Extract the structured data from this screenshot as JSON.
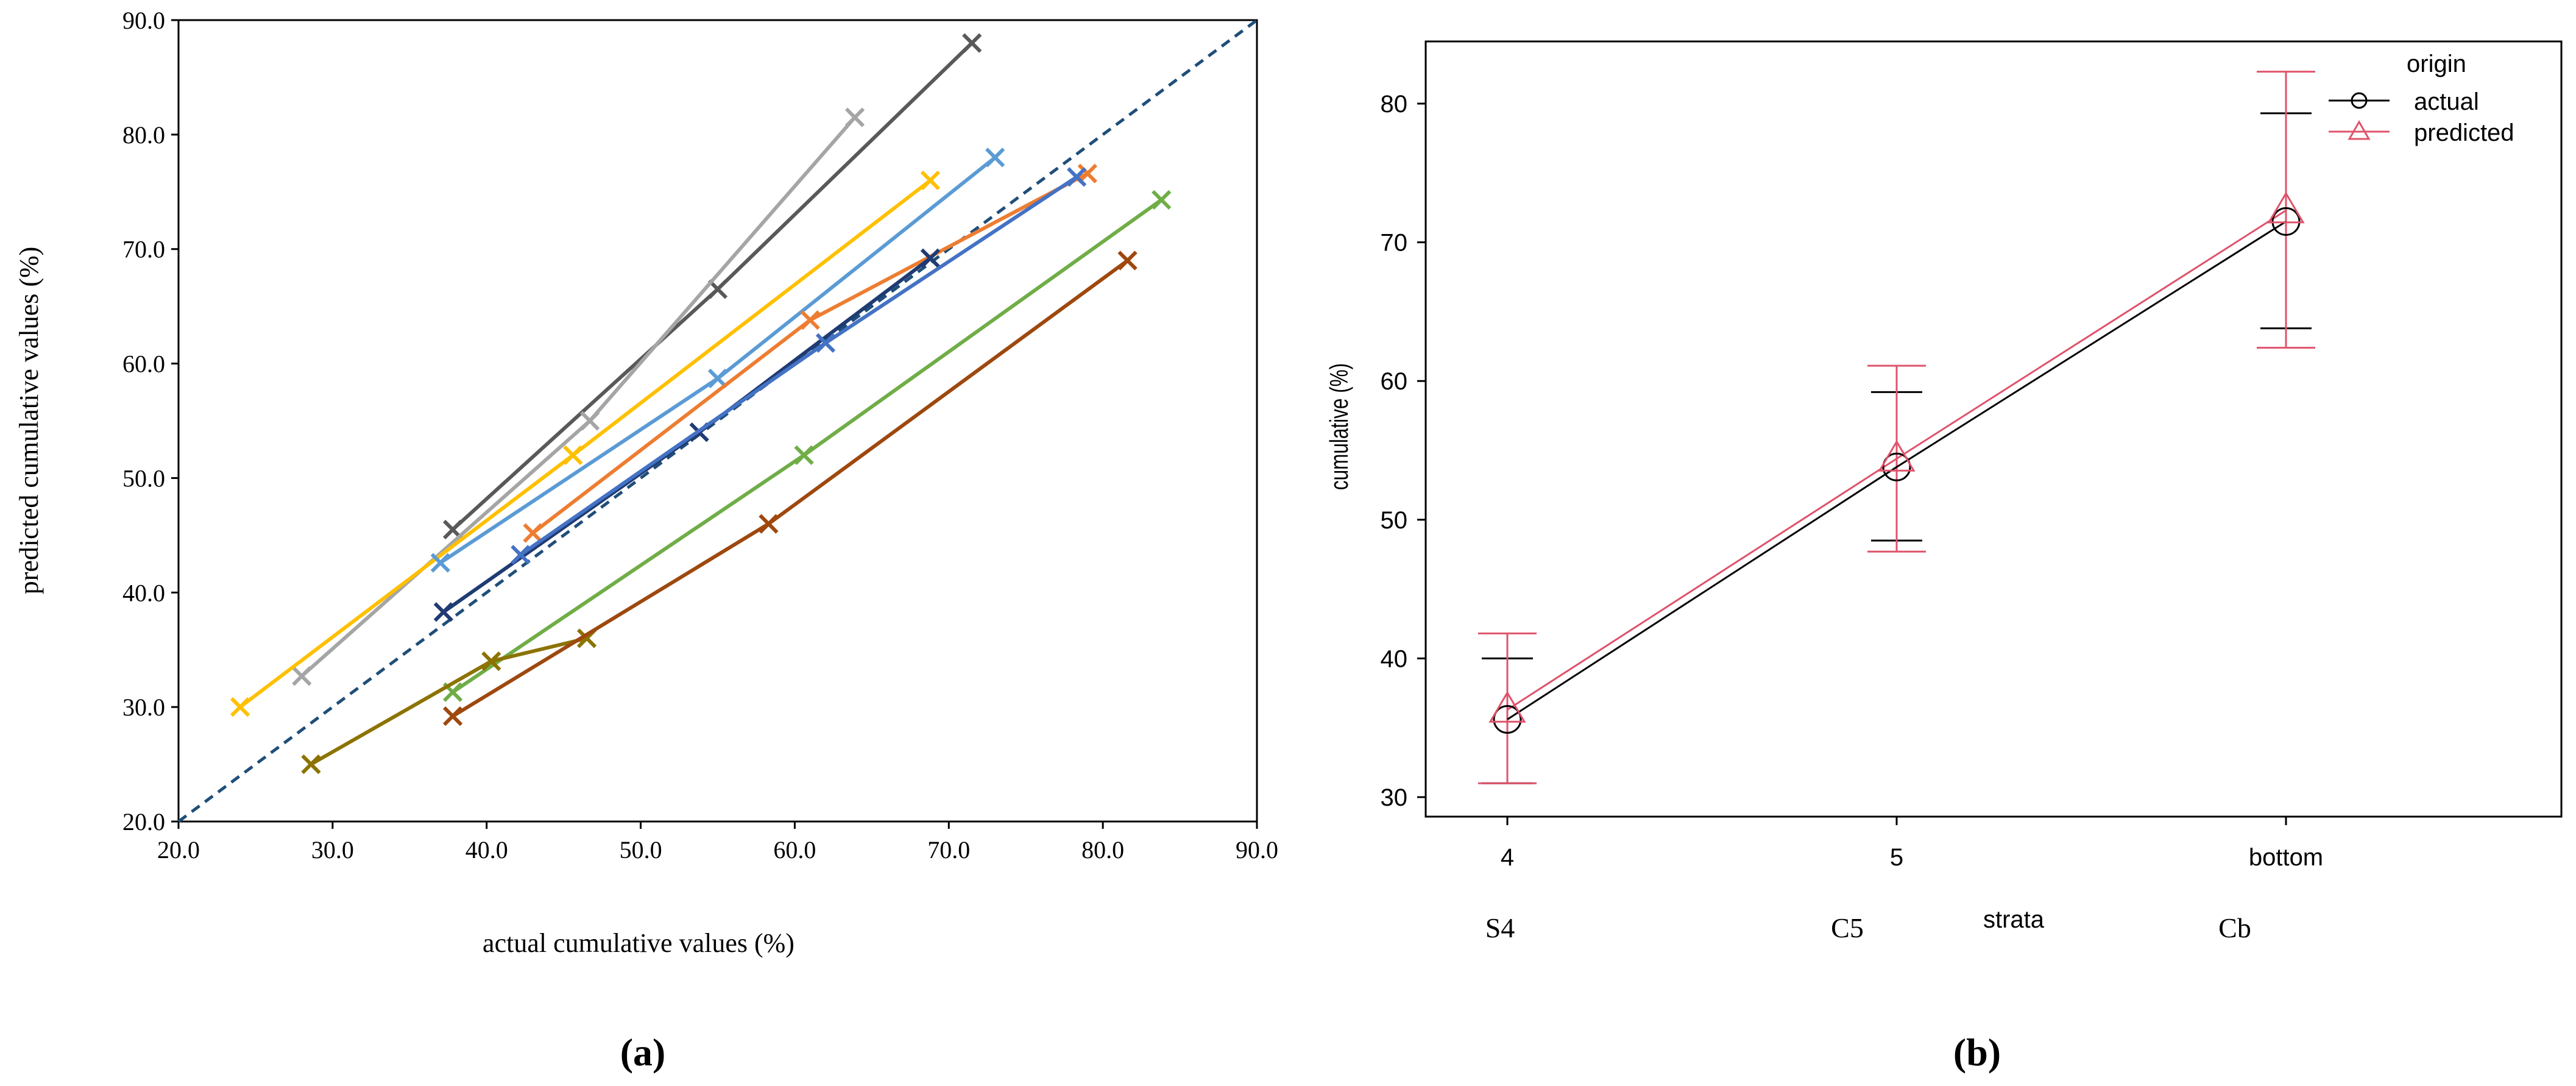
{
  "chart_data": [
    {
      "panel": "(a)",
      "type": "line",
      "xlabel": "actual cumulative values (%)",
      "ylabel": "predicted cumulative values (%)",
      "xlim": [
        20,
        90
      ],
      "ylim": [
        20,
        90
      ],
      "xticks": [
        "20.0",
        "30.0",
        "40.0",
        "50.0",
        "60.0",
        "70.0",
        "80.0",
        "90.0"
      ],
      "yticks": [
        "20.0",
        "30.0",
        "40.0",
        "50.0",
        "60.0",
        "70.0",
        "80.0",
        "90.0"
      ],
      "reference_line": {
        "name": "1:1 line",
        "color": "#1f4e79",
        "points": [
          [
            20,
            20
          ],
          [
            90,
            90
          ]
        ]
      },
      "series": [
        {
          "name": "series-dark-gray",
          "color": "#595959",
          "points": [
            [
              37.8,
              45.5
            ],
            [
              55.0,
              66.5
            ],
            [
              71.5,
              88.0
            ]
          ]
        },
        {
          "name": "series-light-gray",
          "color": "#a5a5a5",
          "points": [
            [
              28.0,
              32.7
            ],
            [
              46.7,
              55.0
            ],
            [
              63.9,
              81.5
            ]
          ]
        },
        {
          "name": "series-yellow",
          "color": "#ffc000",
          "points": [
            [
              24.0,
              30.0
            ],
            [
              45.6,
              52.0
            ],
            [
              68.8,
              76.0
            ]
          ]
        },
        {
          "name": "series-light-blue",
          "color": "#5b9bd5",
          "points": [
            [
              37.0,
              42.6
            ],
            [
              55.0,
              58.7
            ],
            [
              73.0,
              78.0
            ]
          ]
        },
        {
          "name": "series-orange",
          "color": "#ed7d31",
          "points": [
            [
              43.0,
              45.2
            ],
            [
              61.0,
              63.8
            ],
            [
              79.0,
              76.6
            ]
          ]
        },
        {
          "name": "series-navy",
          "color": "#1f3b73",
          "points": [
            [
              37.2,
              38.3
            ],
            [
              53.8,
              54.0
            ],
            [
              68.8,
              69.2
            ]
          ]
        },
        {
          "name": "series-blue",
          "color": "#4472c4",
          "points": [
            [
              42.2,
              43.3
            ],
            [
              62.0,
              61.8
            ],
            [
              78.3,
              76.3
            ]
          ]
        },
        {
          "name": "series-green",
          "color": "#70ad47",
          "points": [
            [
              37.8,
              31.3
            ],
            [
              60.6,
              52.0
            ],
            [
              83.8,
              74.3
            ]
          ]
        },
        {
          "name": "series-olive",
          "color": "#8c7300",
          "points": [
            [
              28.6,
              25.0
            ],
            [
              40.3,
              34.0
            ],
            [
              46.5,
              36.0
            ]
          ]
        },
        {
          "name": "series-brown",
          "color": "#9e480e",
          "points": [
            [
              37.8,
              29.2
            ],
            [
              58.3,
              46.0
            ],
            [
              81.6,
              69.0
            ]
          ]
        }
      ]
    },
    {
      "panel": "(b)",
      "type": "line",
      "xlabel": "strata",
      "ylabel": "cumulative (%)",
      "categories": [
        "4",
        "5",
        "bottom"
      ],
      "sub_categories": [
        "S4",
        "C5",
        "Cb"
      ],
      "ylim": [
        28.5,
        84.5
      ],
      "yticks": [
        "30",
        "40",
        "50",
        "60",
        "70",
        "80"
      ],
      "legend": {
        "title": "origin",
        "position": "top-right"
      },
      "series": [
        {
          "name": "actual",
          "color": "#000000",
          "marker": "circle",
          "values": [
            35.6,
            53.8,
            71.5
          ],
          "lower": [
            31.0,
            48.5,
            63.8
          ],
          "upper": [
            40.0,
            59.2,
            79.3
          ]
        },
        {
          "name": "predicted",
          "color": "#df536b",
          "marker": "triangle",
          "values": [
            36.3,
            54.4,
            72.3
          ],
          "lower": [
            31.0,
            47.7,
            62.4
          ],
          "upper": [
            41.8,
            61.1,
            82.3
          ]
        }
      ]
    }
  ],
  "captions": {
    "a": "(a)",
    "b": "(b)"
  }
}
